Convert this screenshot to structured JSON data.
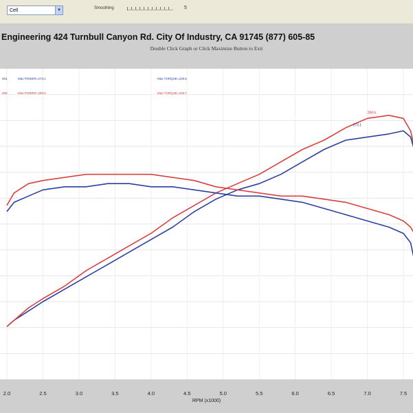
{
  "toolbar": {
    "select_value": "Cell",
    "smoothing_label": "Smoothing",
    "smoothing_value": "5"
  },
  "header": {
    "title": "Engineering 424 Turnbull Canyon Rd. City Of Industry, CA 91745 (877) 605-85",
    "subtitle": "Double Click Graph or Click Maximize Button to Exit"
  },
  "legend": {
    "blue_hp": "Max POWER=273.1",
    "red_hp": "Max POWER=288.6",
    "blue_tq": "Max TORQUE=228.6",
    "red_tq": "Max TORQUE=239.7",
    "blue_prefix": "001",
    "red_prefix": "008"
  },
  "colors": {
    "blue": "#2b3fa0",
    "red": "#d8403f"
  },
  "chart_data": {
    "type": "line",
    "xlabel": "RPM (x1000)",
    "x_ticks": [
      "2.0",
      "2.5",
      "3.0",
      "3.5",
      "4.0",
      "4.5",
      "5.0",
      "5.5",
      "6.0",
      "6.5",
      "7.0",
      "7.5"
    ],
    "xlim": [
      2.0,
      7.8
    ],
    "ylim": [
      0,
      100
    ],
    "grid": true,
    "annotations": [
      "288.6",
      "273.1"
    ],
    "series": [
      {
        "color": "blue",
        "rpm": [
          2.0,
          2.1,
          2.3,
          2.5,
          2.8,
          3.1,
          3.4,
          3.7,
          4.0,
          4.3,
          4.6,
          4.9,
          5.2,
          5.5,
          5.8,
          6.1,
          6.4,
          6.7,
          7.0,
          7.3,
          7.5,
          7.6,
          7.7
        ],
        "values": [
          17,
          19,
          22,
          25,
          29,
          33,
          37,
          41,
          45,
          49,
          54,
          58,
          61,
          63,
          66,
          70,
          74,
          77,
          78,
          79,
          80,
          78,
          70
        ]
      },
      {
        "color": "red",
        "rpm": [
          2.0,
          2.1,
          2.3,
          2.5,
          2.8,
          3.1,
          3.4,
          3.7,
          4.0,
          4.3,
          4.6,
          4.9,
          5.2,
          5.5,
          5.8,
          6.1,
          6.4,
          6.7,
          7.0,
          7.3,
          7.5,
          7.6,
          7.7
        ],
        "values": [
          17,
          19,
          23,
          26,
          30,
          35,
          39,
          43,
          47,
          52,
          56,
          60,
          63,
          66,
          70,
          74,
          77,
          81,
          84,
          85,
          84,
          80,
          70
        ]
      },
      {
        "color": "blue",
        "rpm": [
          2.0,
          2.1,
          2.3,
          2.5,
          2.8,
          3.1,
          3.4,
          3.7,
          4.0,
          4.3,
          4.6,
          4.9,
          5.2,
          5.5,
          5.8,
          6.1,
          6.4,
          6.7,
          7.0,
          7.3,
          7.5,
          7.6,
          7.7
        ],
        "values": [
          54,
          57,
          59,
          61,
          62,
          62,
          63,
          63,
          62,
          62,
          61,
          60,
          59,
          59,
          58,
          57,
          55,
          53,
          51,
          49,
          47,
          44,
          33
        ]
      },
      {
        "color": "red",
        "rpm": [
          2.0,
          2.1,
          2.3,
          2.5,
          2.8,
          3.1,
          3.4,
          3.7,
          4.0,
          4.3,
          4.6,
          4.9,
          5.2,
          5.5,
          5.8,
          6.1,
          6.4,
          6.7,
          7.0,
          7.3,
          7.5,
          7.6,
          7.7
        ],
        "values": [
          56,
          60,
          63,
          64,
          65,
          66,
          66,
          66,
          66,
          65,
          64,
          62,
          61,
          60,
          59,
          59,
          58,
          57,
          55,
          53,
          51,
          49,
          45
        ]
      }
    ]
  }
}
